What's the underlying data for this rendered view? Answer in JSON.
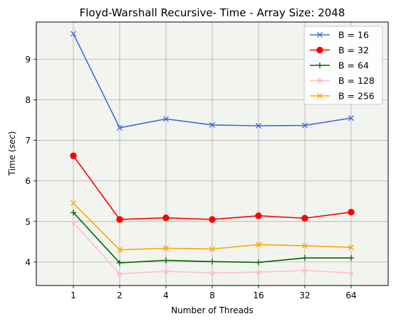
{
  "chart_data": {
    "type": "line",
    "title": "Floyd-Warshall Recursive- Time - Array Size: 2048",
    "xlabel": "Number of Threads",
    "ylabel": "Time (sec)",
    "ylabel_plain": "Time (",
    "ylabel_unit": "sec",
    "ylabel_close": ")",
    "categories": [
      "1",
      "2",
      "4",
      "8",
      "16",
      "32",
      "64"
    ],
    "yticks": [
      "4",
      "5",
      "6",
      "7",
      "8",
      "9"
    ],
    "ylim": [
      3.42,
      9.92
    ],
    "grid": true,
    "legend_position": "top-right",
    "series": [
      {
        "name": "B = 16",
        "color": "#4169e1",
        "marker": "x",
        "values": [
          9.63,
          7.31,
          7.53,
          7.38,
          7.36,
          7.37,
          7.55
        ]
      },
      {
        "name": "B = 32",
        "color": "#ff0000",
        "marker": "circle",
        "values": [
          6.62,
          5.05,
          5.09,
          5.05,
          5.14,
          5.08,
          5.23
        ]
      },
      {
        "name": "B = 64",
        "color": "#006400",
        "marker": "plus",
        "values": [
          5.22,
          3.98,
          4.04,
          4.01,
          3.99,
          4.1,
          4.1
        ]
      },
      {
        "name": "B = 128",
        "color": "#ffc0cb",
        "marker": "star",
        "values": [
          4.97,
          3.71,
          3.77,
          3.73,
          3.75,
          3.79,
          3.73
        ]
      },
      {
        "name": "B = 256",
        "color": "#ffa500",
        "marker": "x",
        "values": [
          5.45,
          4.3,
          4.34,
          4.32,
          4.43,
          4.4,
          4.36
        ]
      }
    ]
  }
}
